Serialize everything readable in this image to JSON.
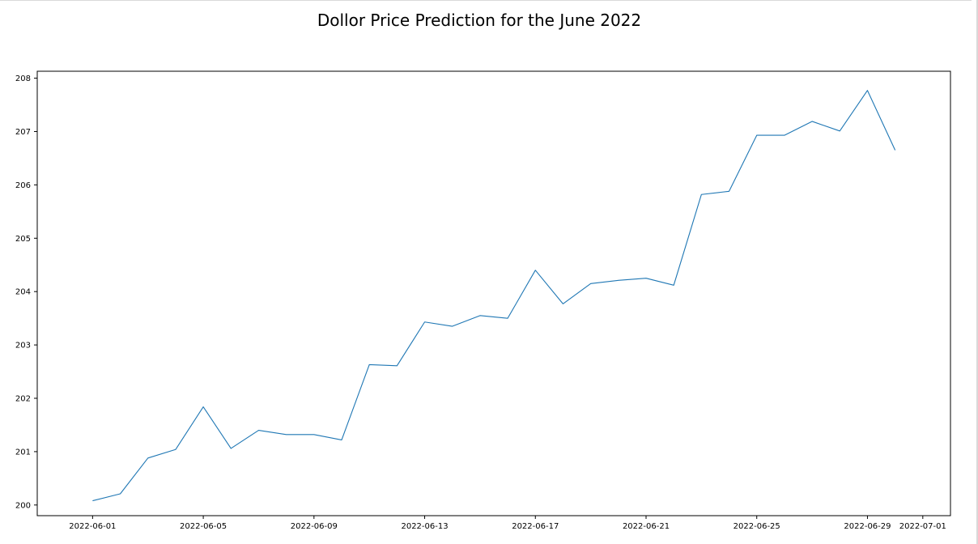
{
  "chart_data": {
    "type": "line",
    "title": "Dollor Price Prediction for the June 2022",
    "xlabel": "",
    "ylabel": "",
    "x": [
      "2022-06-01",
      "2022-06-02",
      "2022-06-03",
      "2022-06-04",
      "2022-06-05",
      "2022-06-06",
      "2022-06-07",
      "2022-06-08",
      "2022-06-09",
      "2022-06-10",
      "2022-06-11",
      "2022-06-12",
      "2022-06-13",
      "2022-06-14",
      "2022-06-15",
      "2022-06-16",
      "2022-06-17",
      "2022-06-18",
      "2022-06-19",
      "2022-06-20",
      "2022-06-21",
      "2022-06-22",
      "2022-06-23",
      "2022-06-24",
      "2022-06-25",
      "2022-06-26",
      "2022-06-27",
      "2022-06-28",
      "2022-06-29",
      "2022-06-30"
    ],
    "series": [
      {
        "values": [
          200.08,
          200.21,
          200.88,
          201.04,
          201.84,
          201.06,
          201.4,
          201.32,
          201.32,
          201.22,
          202.63,
          202.61,
          203.43,
          203.35,
          203.55,
          203.5,
          204.4,
          203.77,
          204.15,
          204.21,
          204.25,
          204.12,
          205.82,
          205.88,
          206.93,
          206.93,
          207.19,
          207.01,
          207.77,
          206.65
        ],
        "color": "#1f77b4"
      }
    ],
    "xlim": [
      "2022-05-30",
      "2022-07-02"
    ],
    "ylim": [
      199.8,
      208.13
    ],
    "xticks": [
      "2022-06-01",
      "2022-06-05",
      "2022-06-09",
      "2022-06-13",
      "2022-06-17",
      "2022-06-21",
      "2022-06-25",
      "2022-06-29",
      "2022-07-01"
    ],
    "yticks": [
      200,
      201,
      202,
      203,
      204,
      205,
      206,
      207,
      208
    ],
    "grid": false,
    "legend": "none"
  }
}
